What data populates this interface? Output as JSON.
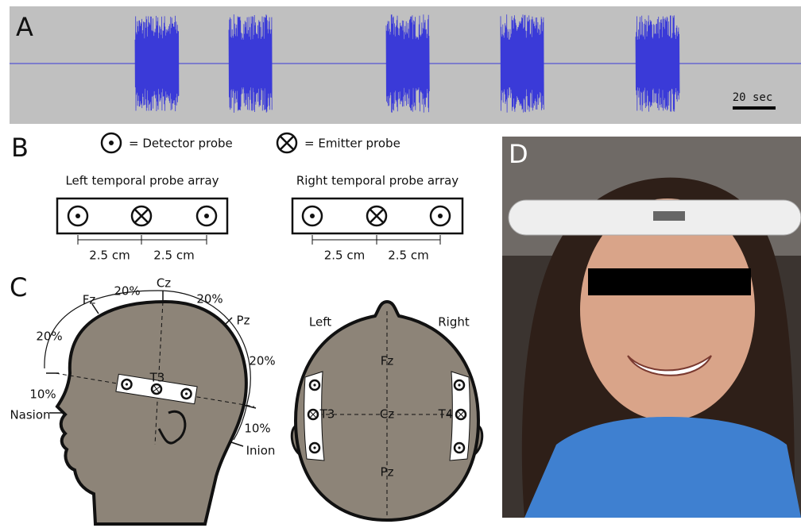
{
  "panels": {
    "a": {
      "label": "A",
      "scale_bar": "20 sec"
    },
    "b": {
      "label": "B",
      "legend": {
        "detector": "= Detector probe",
        "emitter": "= Emitter probe"
      },
      "arrays": [
        {
          "title": "Left temporal probe array",
          "spacings": [
            "2.5 cm",
            "2.5 cm"
          ]
        },
        {
          "title": "Right temporal probe array",
          "spacings": [
            "2.5 cm",
            "2.5 cm"
          ]
        }
      ]
    },
    "c": {
      "label": "C",
      "side_view": {
        "positions": [
          "Fz",
          "Cz",
          "Pz"
        ],
        "percentages": [
          "20%",
          "20%",
          "20%",
          "20%",
          "10%",
          "10%"
        ],
        "landmarks": [
          "Nasion",
          "Inion"
        ],
        "probe": "T3"
      },
      "top_view": {
        "sides": [
          "Left",
          "Right"
        ],
        "positions": [
          "Fz",
          "Cz",
          "Pz"
        ],
        "probes": [
          "T3",
          "T4"
        ]
      }
    },
    "d": {
      "label": "D"
    }
  }
}
